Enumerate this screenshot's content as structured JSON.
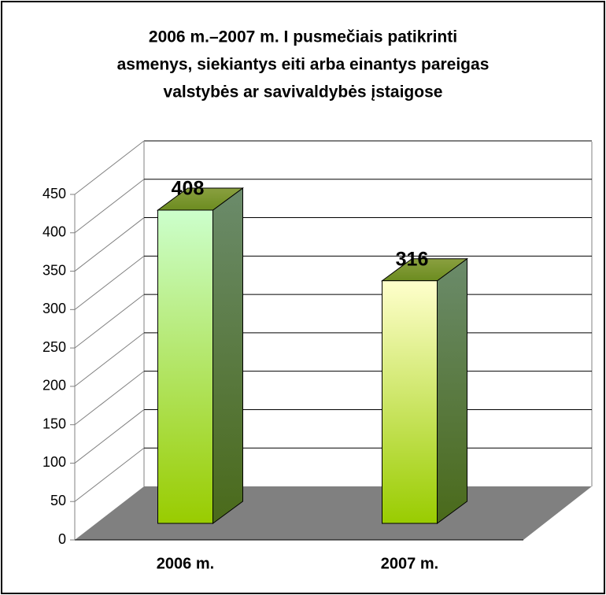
{
  "chart_data": {
    "type": "bar",
    "title": [
      "2006 m.–2007 m. I pusmečiais patikrinti",
      "asmenys, siekiantys eiti arba einantys pareigas",
      "valstybės ar savivaldybės įstaigose"
    ],
    "categories": [
      "2006 m.",
      "2007 m."
    ],
    "values": [
      408,
      316
    ],
    "colors": [
      "#ccffcc",
      "#ffffcc"
    ],
    "ylim": [
      0,
      450
    ],
    "yticks": [
      0,
      50,
      100,
      150,
      200,
      250,
      300,
      350,
      400,
      450
    ],
    "grid": true
  }
}
